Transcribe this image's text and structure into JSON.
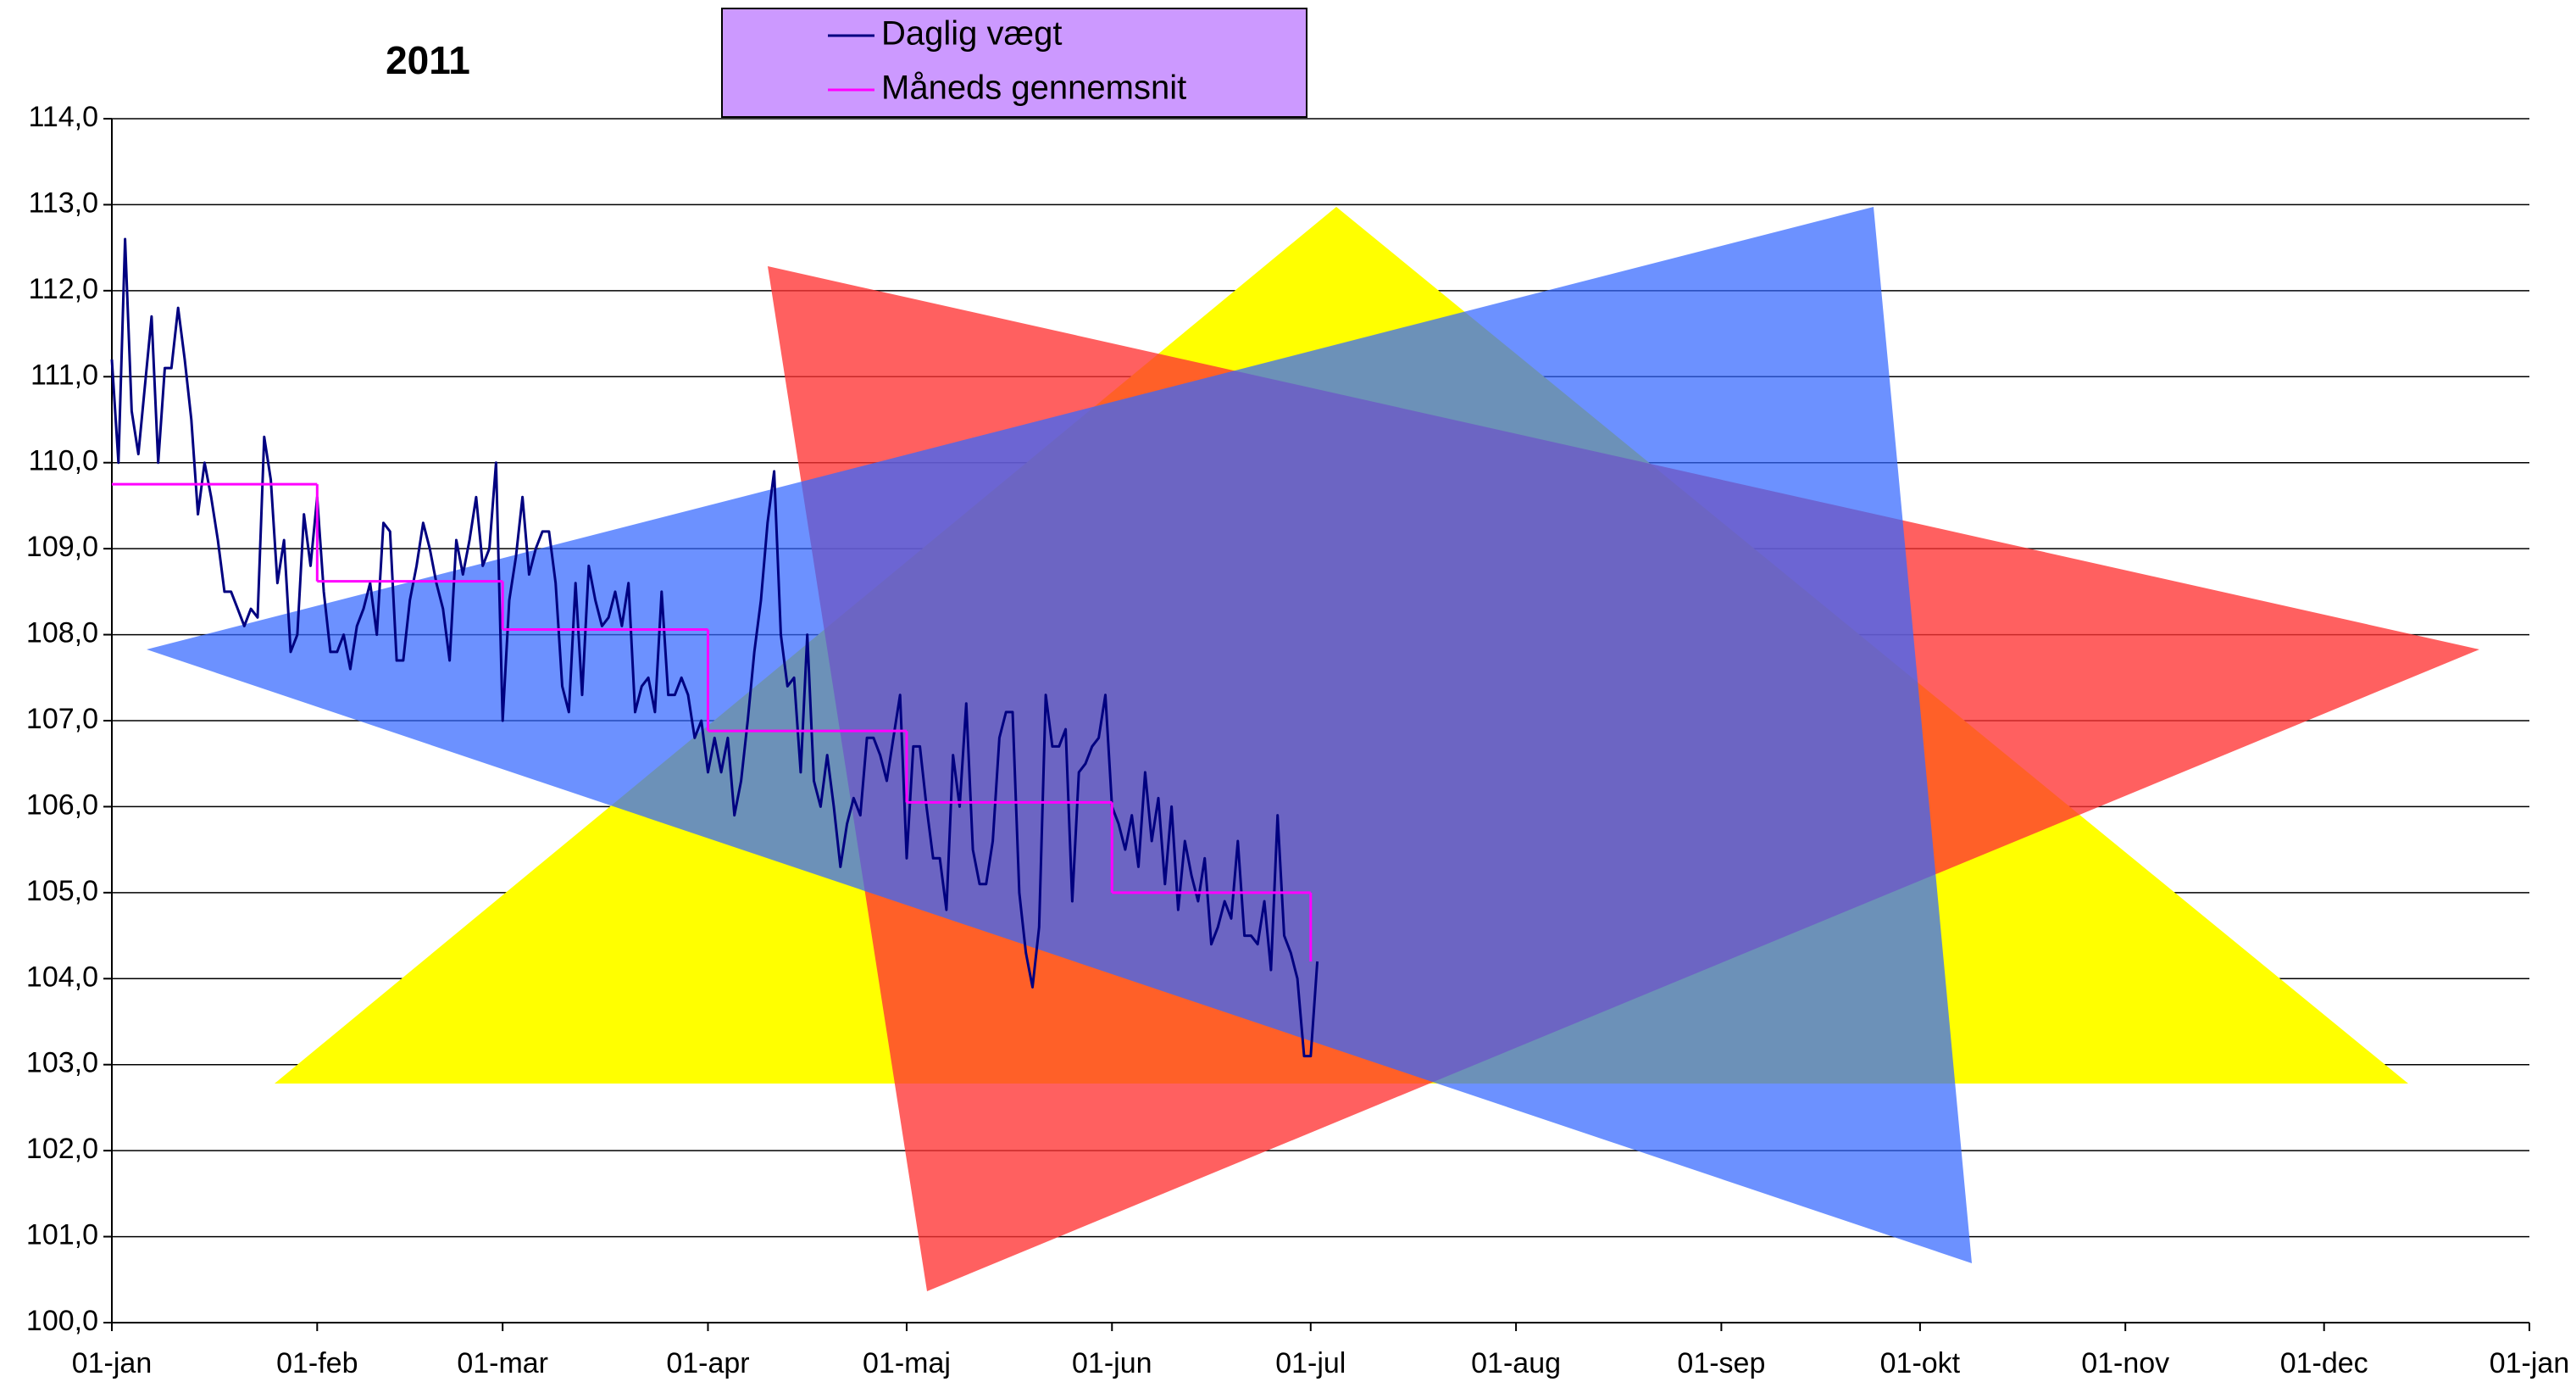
{
  "chart_data": {
    "type": "line",
    "title": "2011",
    "x": [
      1,
      2,
      3,
      4,
      5,
      6,
      7,
      8,
      9,
      10,
      11,
      12,
      13,
      14,
      15,
      16,
      17,
      18,
      19,
      20,
      21,
      22,
      23,
      24,
      25,
      26,
      27,
      28,
      29,
      30,
      31,
      32,
      33,
      34,
      35,
      36,
      37,
      38,
      39,
      40,
      41,
      42,
      43,
      44,
      45,
      46,
      47,
      48,
      49,
      50,
      51,
      52,
      53,
      54,
      55,
      56,
      57,
      58,
      59,
      60,
      61,
      62,
      63,
      64,
      65,
      66,
      67,
      68,
      69,
      70,
      71,
      72,
      73,
      74,
      75,
      76,
      77,
      78,
      79,
      80,
      81,
      82,
      83,
      84,
      85,
      86,
      87,
      88,
      89,
      90,
      91,
      92,
      93,
      94,
      95,
      96,
      97,
      98,
      99,
      100,
      101,
      102,
      103,
      104,
      105,
      106,
      107,
      108,
      109,
      110,
      111,
      112,
      113,
      114,
      115,
      116,
      117,
      118,
      119,
      120,
      121,
      122,
      123,
      124,
      125,
      126,
      127,
      128,
      129,
      130,
      131,
      132,
      133,
      134,
      135,
      136,
      137,
      138,
      139,
      140,
      141,
      142,
      143,
      144,
      145,
      146,
      147,
      148,
      149,
      150,
      151,
      152,
      153,
      154,
      155,
      156,
      157,
      158,
      159,
      160,
      161,
      162,
      163,
      164,
      165,
      166,
      167,
      168,
      169,
      170,
      171,
      172,
      173,
      174,
      175,
      176,
      177,
      178,
      179,
      180,
      181,
      182,
      183
    ],
    "series": [
      {
        "name": "Daglig vægt",
        "color": "#000080",
        "values": [
          111.2,
          110.0,
          112.6,
          110.6,
          110.1,
          110.9,
          111.7,
          110.0,
          111.1,
          111.1,
          111.8,
          111.2,
          110.5,
          109.4,
          110.0,
          109.6,
          109.1,
          108.5,
          108.5,
          108.3,
          108.1,
          108.3,
          108.2,
          110.3,
          109.8,
          108.6,
          109.1,
          107.8,
          108.0,
          109.4,
          108.8,
          109.6,
          108.5,
          107.8,
          107.8,
          108.0,
          107.6,
          108.1,
          108.3,
          108.6,
          108.0,
          109.3,
          109.2,
          107.7,
          107.7,
          108.4,
          108.8,
          109.3,
          109.0,
          108.6,
          108.3,
          107.7,
          109.1,
          108.7,
          109.1,
          109.6,
          108.8,
          109.0,
          110.0,
          107.0,
          108.4,
          108.9,
          109.6,
          108.7,
          109.0,
          109.2,
          109.2,
          108.6,
          107.4,
          107.1,
          108.6,
          107.3,
          108.8,
          108.4,
          108.1,
          108.2,
          108.5,
          108.1,
          108.6,
          107.1,
          107.4,
          107.5,
          107.1,
          108.5,
          107.3,
          107.3,
          107.5,
          107.3,
          106.8,
          107.0,
          106.4,
          106.8,
          106.4,
          106.8,
          105.9,
          106.3,
          107.0,
          107.8,
          108.4,
          109.3,
          109.9,
          108.0,
          107.4,
          107.5,
          106.4,
          108.0,
          106.3,
          106.0,
          106.6,
          106.0,
          105.3,
          105.8,
          106.1,
          105.9,
          106.8,
          106.8,
          106.6,
          106.3,
          106.8,
          107.3,
          105.4,
          106.7,
          106.7,
          106.0,
          105.4,
          105.4,
          104.8,
          106.6,
          106.0,
          107.2,
          105.5,
          105.1,
          105.1,
          105.6,
          106.8,
          107.1,
          107.1,
          105.0,
          104.3,
          103.9,
          104.6,
          107.3,
          106.7,
          106.7,
          106.9,
          104.9,
          106.4,
          106.5,
          106.7,
          106.8,
          107.3,
          106.0,
          105.8,
          105.5,
          105.9,
          105.3,
          106.4,
          105.6,
          106.1,
          105.1,
          106.0,
          104.8,
          105.6,
          105.2,
          104.9,
          105.4,
          104.4,
          104.6,
          104.9,
          104.7,
          105.6,
          104.5,
          104.5,
          104.4,
          104.9,
          104.1,
          105.9,
          104.5,
          104.3,
          104.0,
          103.1,
          103.1,
          104.2
        ]
      },
      {
        "name": "Måneds gennemsnit",
        "color": "#ff00ff",
        "step": "post",
        "x": [
          1,
          32,
          60,
          91,
          121,
          152,
          182
        ],
        "values": [
          109.75,
          108.62,
          108.06,
          106.88,
          106.05,
          105.0,
          104.2
        ]
      }
    ],
    "xlim": [
      1,
      366
    ],
    "xticks": [
      {
        "value": 1,
        "label": "01-jan"
      },
      {
        "value": 32,
        "label": "01-feb"
      },
      {
        "value": 60,
        "label": "01-mar"
      },
      {
        "value": 91,
        "label": "01-apr"
      },
      {
        "value": 121,
        "label": "01-maj"
      },
      {
        "value": 152,
        "label": "01-jun"
      },
      {
        "value": 182,
        "label": "01-jul"
      },
      {
        "value": 213,
        "label": "01-aug"
      },
      {
        "value": 244,
        "label": "01-sep"
      },
      {
        "value": 274,
        "label": "01-okt"
      },
      {
        "value": 305,
        "label": "01-nov"
      },
      {
        "value": 335,
        "label": "01-dec"
      },
      {
        "value": 366,
        "label": "01-jan"
      }
    ],
    "ylim": [
      100,
      114
    ],
    "yticks": [
      {
        "value": 100,
        "label": "100,0"
      },
      {
        "value": 101,
        "label": "101,0"
      },
      {
        "value": 102,
        "label": "102,0"
      },
      {
        "value": 103,
        "label": "103,0"
      },
      {
        "value": 104,
        "label": "104,0"
      },
      {
        "value": 105,
        "label": "105,0"
      },
      {
        "value": 106,
        "label": "106,0"
      },
      {
        "value": 107,
        "label": "107,0"
      },
      {
        "value": 108,
        "label": "108,0"
      },
      {
        "value": 109,
        "label": "109,0"
      },
      {
        "value": 110,
        "label": "110,0"
      },
      {
        "value": 111,
        "label": "111,0"
      },
      {
        "value": 112,
        "label": "112,0"
      },
      {
        "value": 113,
        "label": "113,0"
      },
      {
        "value": 114,
        "label": "114,0"
      }
    ],
    "grid": true,
    "legend": "top-center",
    "legend_color": "#cc99ff"
  }
}
